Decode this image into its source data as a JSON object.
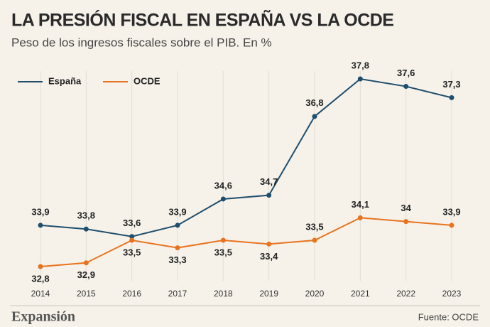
{
  "chart_data": {
    "type": "line",
    "title": "LA PRESIÓN FISCAL EN ESPAÑA VS LA OCDE",
    "subtitle": "Peso de los ingresos fiscales sobre el PIB. En %",
    "categories": [
      "2014",
      "2015",
      "2016",
      "2017",
      "2018",
      "2019",
      "2020",
      "2021",
      "2022",
      "2023"
    ],
    "series": [
      {
        "name": "España",
        "color": "#1f4e6d",
        "values": [
          33.9,
          33.8,
          33.6,
          33.9,
          34.6,
          34.7,
          36.8,
          37.8,
          37.6,
          37.3
        ],
        "value_labels": [
          "33,9",
          "33,8",
          "33,6",
          "33,9",
          "34,6",
          "34,7",
          "36,8",
          "37,8",
          "37,6",
          "37,3"
        ]
      },
      {
        "name": "OCDE",
        "color": "#e8731f",
        "values": [
          32.8,
          32.9,
          33.5,
          33.3,
          33.5,
          33.4,
          33.5,
          34.1,
          34,
          33.9
        ],
        "value_labels": [
          "32,8",
          "32,9",
          "33,5",
          "33,3",
          "33,5",
          "33,4",
          "33,5",
          "34,1",
          "34",
          "33,9"
        ]
      }
    ],
    "legend": "top-left",
    "brand": "Expansión",
    "source": "Fuente: OCDE"
  }
}
